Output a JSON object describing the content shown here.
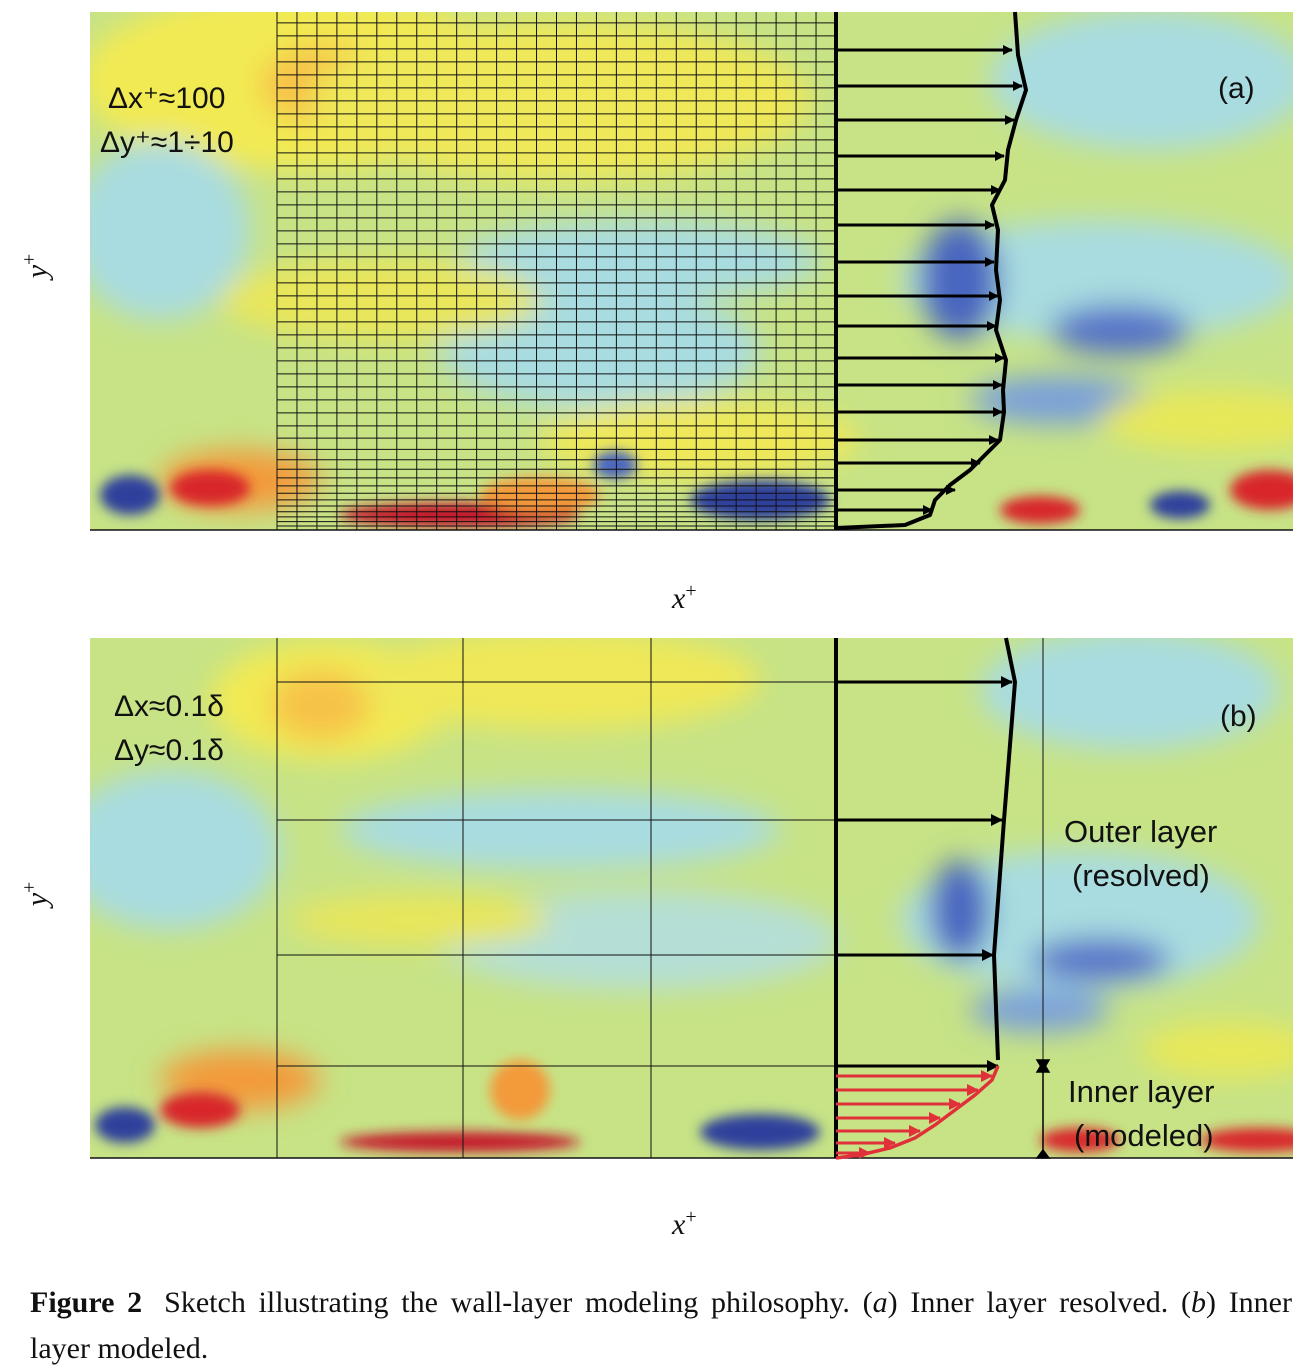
{
  "figure": {
    "panel_a": {
      "tag": "(a)",
      "dx_label": "Δx⁺≈100",
      "dy_label": "Δy⁺≈1÷10",
      "x_axis": "x",
      "y_axis": "y",
      "axis_sup": "+"
    },
    "panel_b": {
      "tag": "(b)",
      "dx_label": "Δx≈0.1δ",
      "dy_label": "Δy≈0.1δ",
      "outer_line1": "Outer layer",
      "outer_line2": "(resolved)",
      "inner_line1": "Inner layer",
      "inner_line2": "(modeled)",
      "x_axis": "x",
      "y_axis": "y",
      "axis_sup": "+"
    }
  },
  "caption": {
    "lead": "Figure 2",
    "text_1": "Sketch illustrating the wall-layer modeling philosophy. (",
    "a": "a",
    "text_2": ") Inner layer resolved. (",
    "b": "b",
    "text_3": ") Inner layer modeled."
  },
  "colors": {
    "yellow": "#f2ea52",
    "cyan": "#a9dce0",
    "green": "#c7e386",
    "blue": "#2f3f9c",
    "red": "#d8262a",
    "orange": "#f39a3a",
    "modeled_arrow": "#e0303a"
  }
}
